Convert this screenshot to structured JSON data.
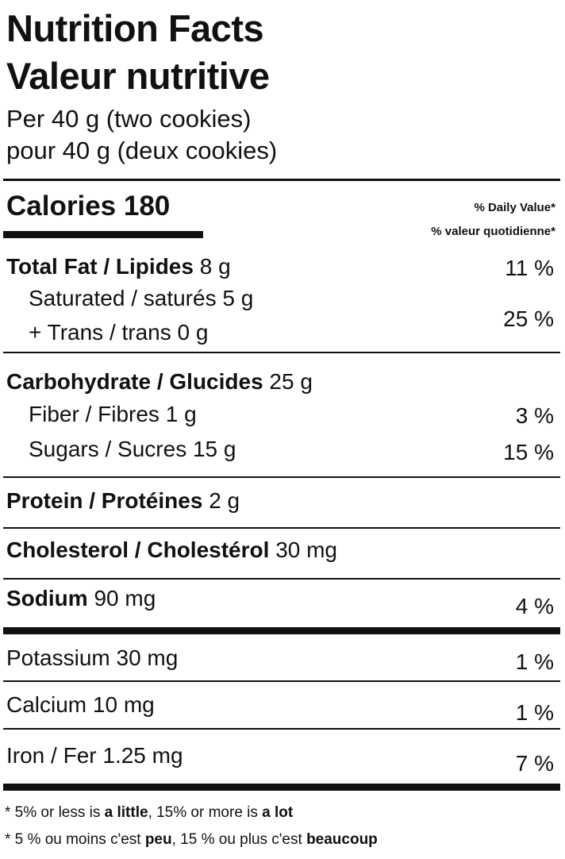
{
  "header": {
    "title_en": "Nutrition Facts",
    "title_fr": "Valeur nutritive",
    "serving_en": "Per 40 g (two cookies)",
    "serving_fr": "pour 40 g (deux cookies)"
  },
  "calories": {
    "label": "Calories",
    "value": "180",
    "dv_header_en": "% Daily Value*",
    "dv_header_fr": "% valeur quotidienne*"
  },
  "rows": [
    {
      "name": "Total Fat / Lipides",
      "amount": "8 g",
      "dv": "11 %"
    },
    {
      "name": "Saturated / saturés",
      "amount": "5 g"
    },
    {
      "name": "+ Trans / trans",
      "amount": "0 g",
      "dv": "25 %"
    },
    {
      "name": "Carbohydrate / Glucides",
      "amount": "25 g"
    },
    {
      "name": "Fiber / Fibres",
      "amount": "1 g",
      "dv": "3 %"
    },
    {
      "name": "Sugars / Sucres",
      "amount": "15 g",
      "dv": "15 %"
    },
    {
      "name": "Protein / Protéines",
      "amount": "2 g"
    },
    {
      "name": "Cholesterol / Cholestérol",
      "amount": "30 mg"
    },
    {
      "name": "Sodium",
      "amount": "90 mg",
      "dv": "4 %"
    },
    {
      "name": "Potassium",
      "amount": "30 mg",
      "dv": "1 %"
    },
    {
      "name": "Calcium",
      "amount": "10 mg",
      "dv": "1 %"
    },
    {
      "name": "Iron / Fer",
      "amount": "1.25 mg",
      "dv": "7 %"
    }
  ],
  "footnotes": [
    [
      "* 5% or less is ",
      "a little",
      ", 15% or more is ",
      "a lot"
    ],
    [
      "* 5 % ou moins c'est ",
      "peu",
      ", 15 % ou plus c'est ",
      "beaucoup"
    ]
  ]
}
